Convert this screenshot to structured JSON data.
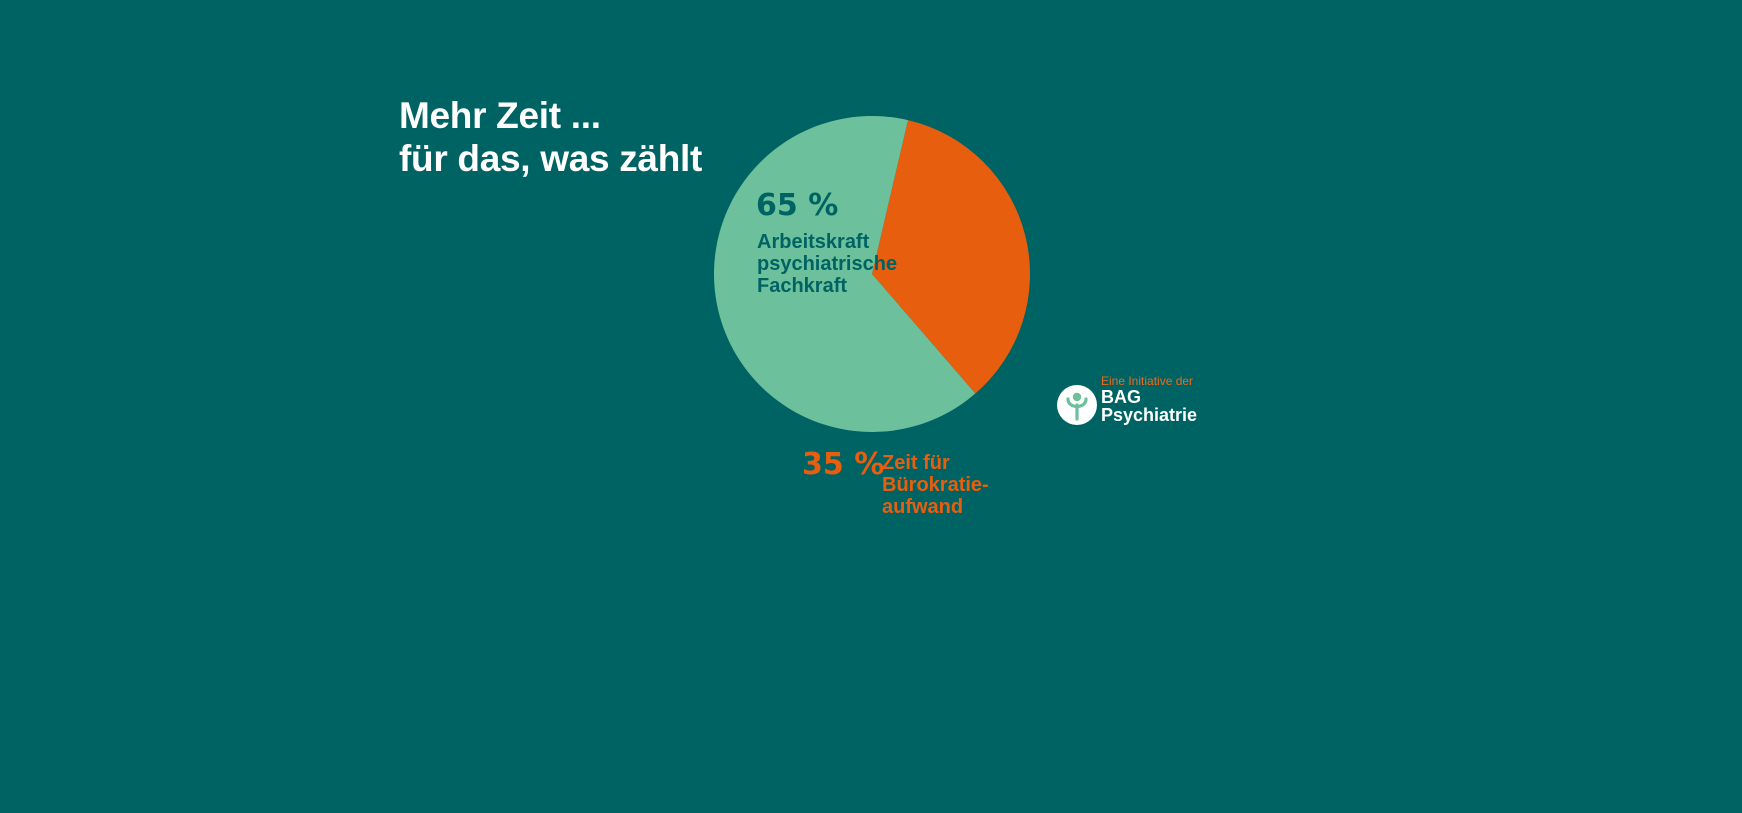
{
  "headline": {
    "line1": "Mehr Zeit ...",
    "line2": "für das, was zählt"
  },
  "chart_data": {
    "type": "pie",
    "title": "",
    "slices": [
      {
        "value": 65,
        "value_label": "65 %",
        "label_lines": [
          "Arbeitskraft",
          "psychiatrische",
          "Fachkraft"
        ],
        "color": "#6cc09c",
        "text_color": "#006363"
      },
      {
        "value": 35,
        "value_label": "35 %",
        "label_lines": [
          "Zeit für",
          "Bürokratie-",
          "aufwand"
        ],
        "color": "#e85e0f",
        "text_color": "#e85e0f"
      }
    ]
  },
  "logo": {
    "initiative": "Eine Initiative der",
    "name_line1": "BAG",
    "name_line2": "Psychiatrie",
    "icon": "psi-tree-icon"
  },
  "colors": {
    "background": "#006363",
    "accent_green": "#6cc09c",
    "accent_orange": "#e85e0f"
  }
}
